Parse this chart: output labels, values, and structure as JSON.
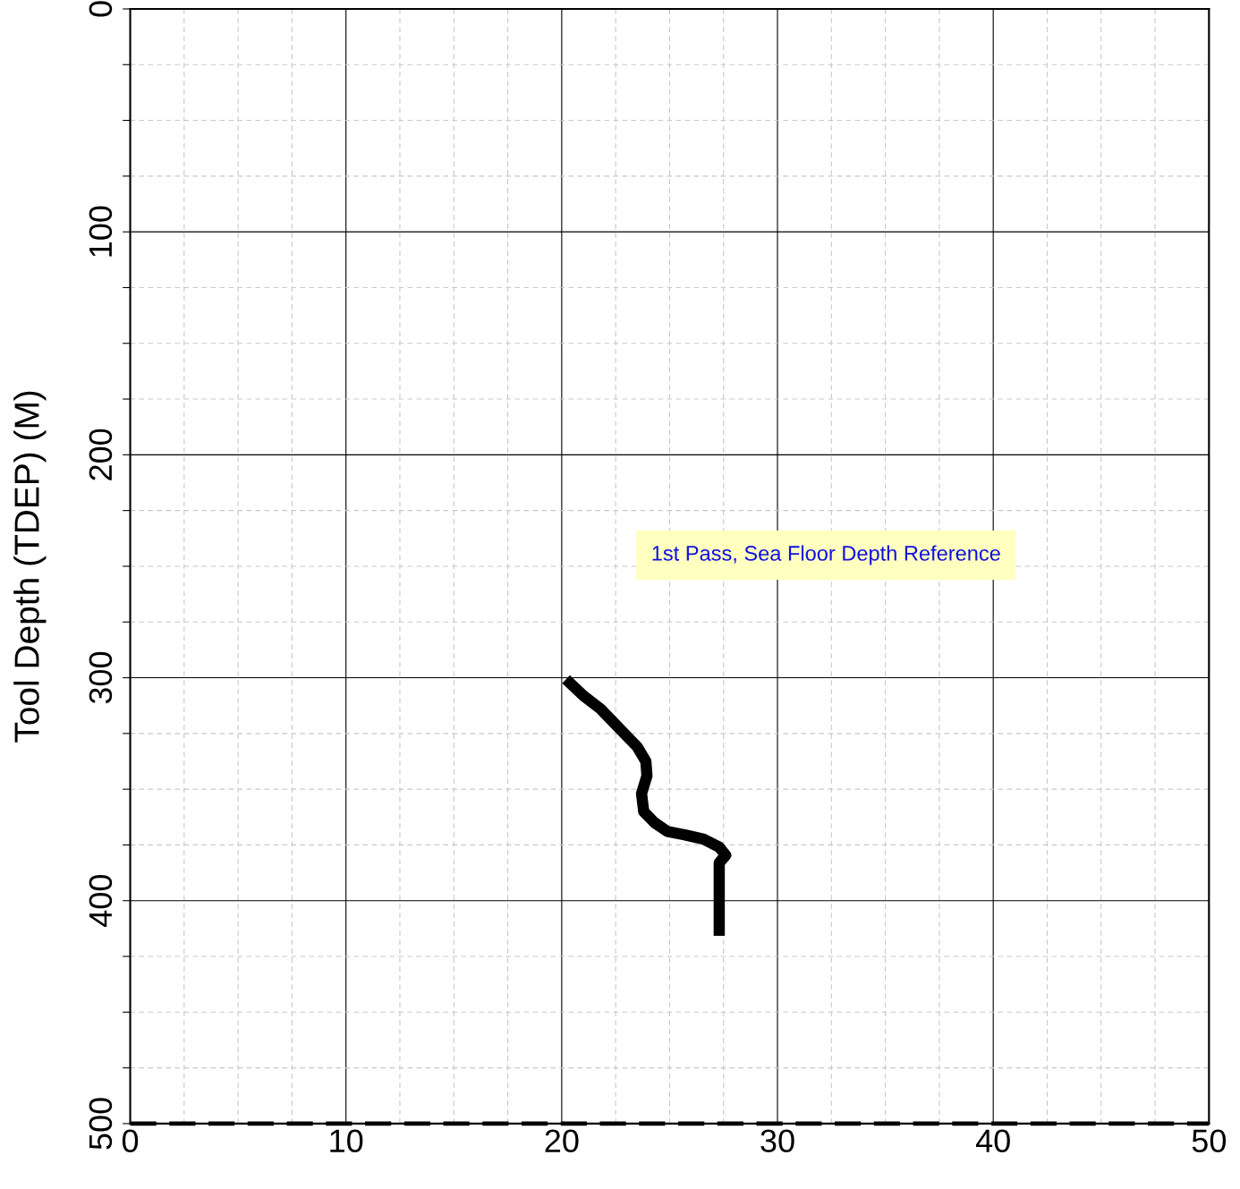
{
  "chart_data": {
    "type": "line",
    "ylabel": "Tool Depth (TDEP) (M)",
    "annotations": [
      "1st Pass, Sea Floor Depth Reference"
    ],
    "x": [
      20.2,
      21.0,
      21.8,
      22.7,
      23.5,
      23.9,
      23.95,
      23.7,
      23.8,
      24.3,
      24.9,
      25.7,
      26.6,
      27.3,
      27.6,
      27.3,
      27.3,
      27.3
    ],
    "series": [
      {
        "color": "#000000",
        "values": [
          300.7,
          308,
          314,
          323,
          331,
          337.5,
          344,
          352,
          360,
          365,
          369,
          370.5,
          372.5,
          376,
          379.6,
          383,
          397,
          415.8
        ]
      }
    ],
    "xlim": [
      0,
      50
    ],
    "ylim": [
      500,
      0
    ],
    "xticks": [
      0,
      {
        "value": 2.5,
        "label": null
      },
      {
        "value": 5,
        "label": null
      },
      {
        "value": 7.5,
        "label": null
      },
      10,
      {
        "value": 12.5,
        "label": null
      },
      {
        "value": 15,
        "label": null
      },
      {
        "value": 17.5,
        "label": null
      },
      20,
      {
        "value": 22.5,
        "label": null
      },
      {
        "value": 25,
        "label": null
      },
      {
        "value": 27.5,
        "label": null
      },
      30,
      {
        "value": 32.5,
        "label": null
      },
      {
        "value": 35,
        "label": null
      },
      {
        "value": 37.5,
        "label": null
      },
      40,
      {
        "value": 42.5,
        "label": null
      },
      {
        "value": 45,
        "label": null
      },
      {
        "value": 47.5,
        "label": null
      },
      50
    ],
    "yticks": [
      0,
      {
        "value": 25,
        "label": null
      },
      {
        "value": 50,
        "label": null
      },
      {
        "value": 75,
        "label": null
      },
      100,
      {
        "value": 125,
        "label": null
      },
      {
        "value": 150,
        "label": null
      },
      {
        "value": 175,
        "label": null
      },
      200,
      {
        "value": 225,
        "label": null
      },
      {
        "value": 250,
        "label": null
      },
      {
        "value": 275,
        "label": null
      },
      300,
      {
        "value": 325,
        "label": null
      },
      {
        "value": 350,
        "label": null
      },
      {
        "value": 375,
        "label": null
      },
      400,
      {
        "value": 425,
        "label": null
      },
      {
        "value": 450,
        "label": null
      },
      {
        "value": 475,
        "label": null
      },
      500
    ],
    "grid": true,
    "marker": "none",
    "line_style": "solid",
    "ref_lines": [
      {
        "axis": "y",
        "value": 500,
        "color": "#000000",
        "line_style": "dashed"
      }
    ]
  }
}
